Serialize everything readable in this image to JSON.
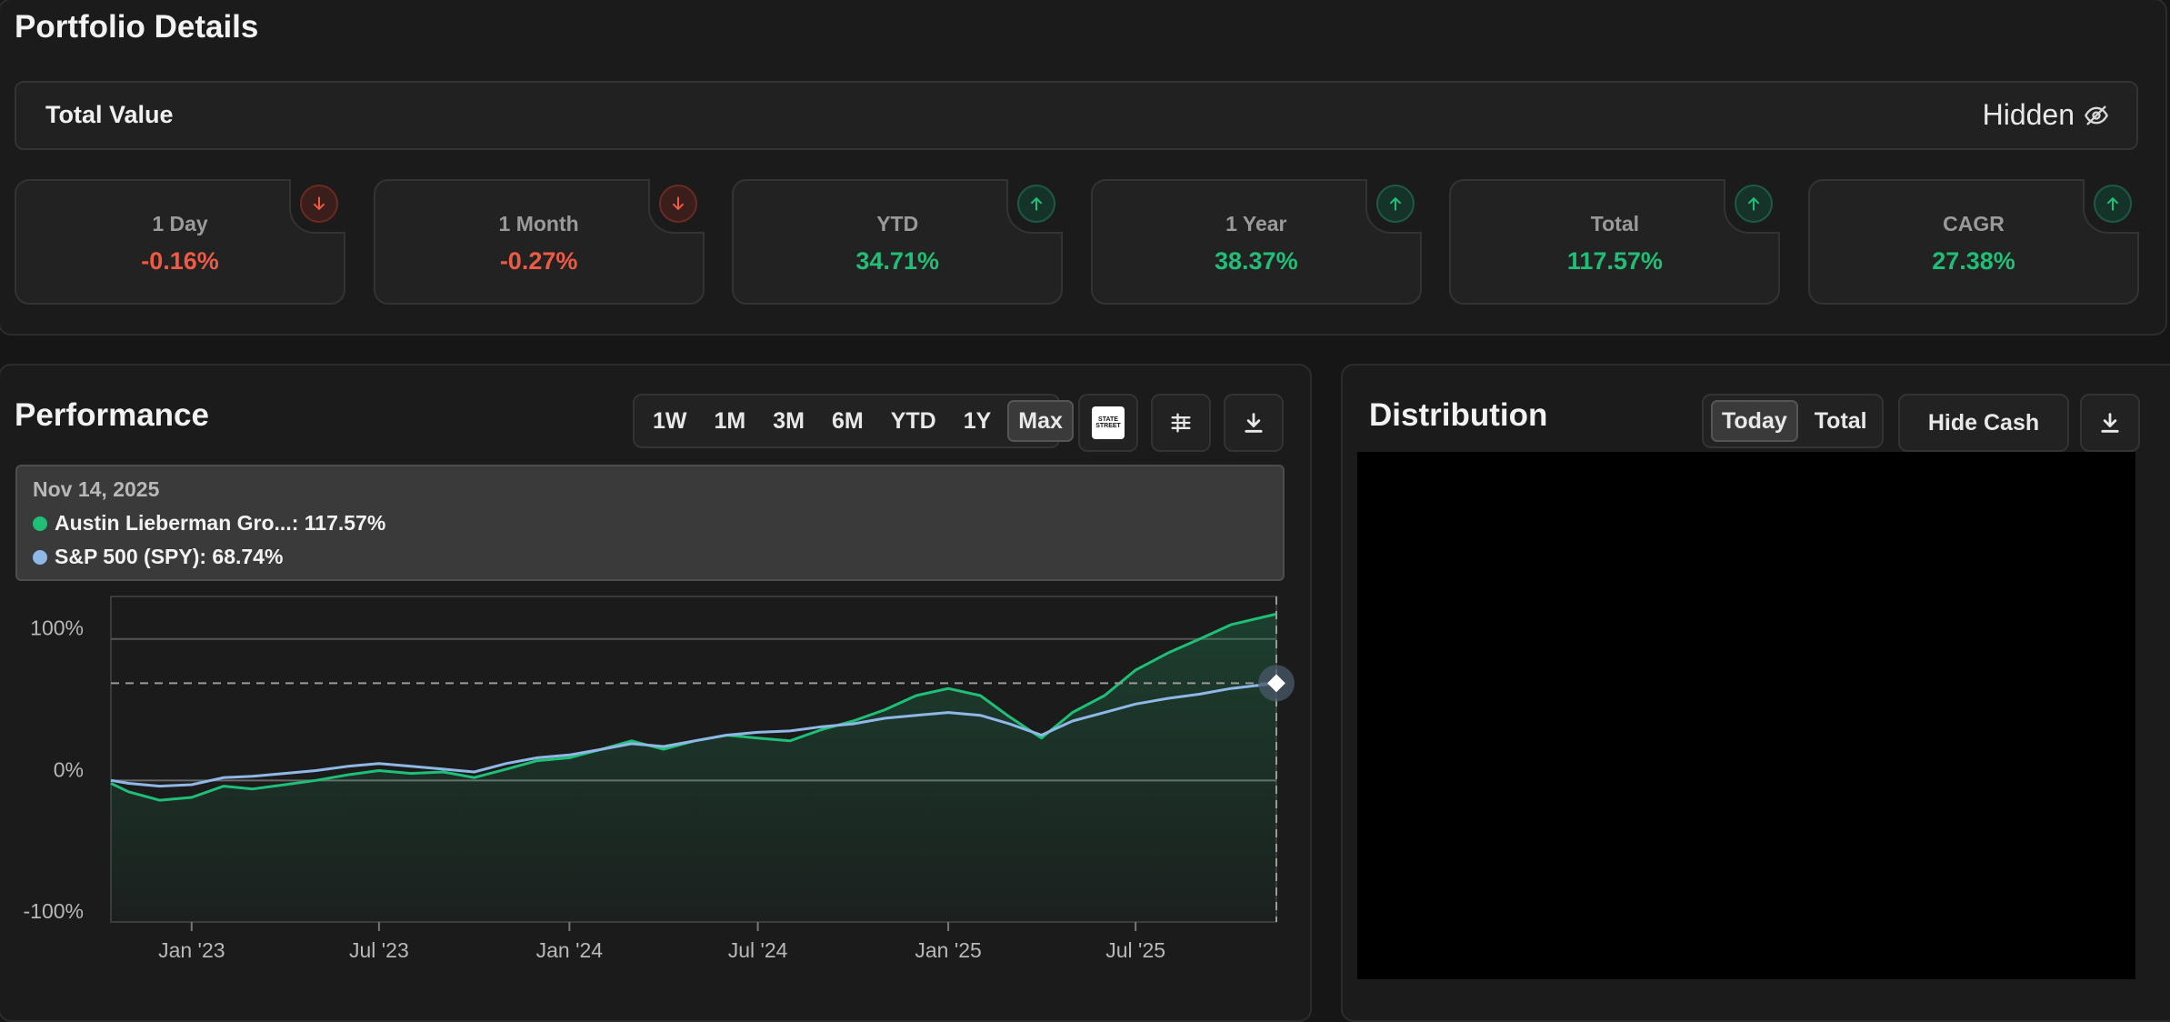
{
  "page_title": "Portfolio Details",
  "total_value": {
    "label": "Total Value",
    "status": "Hidden",
    "icon": "eye-off-icon"
  },
  "stats": [
    {
      "label": "1 Day",
      "value": "-0.16%",
      "trend": "down",
      "color": "#ef5a44"
    },
    {
      "label": "1 Month",
      "value": "-0.27%",
      "trend": "down",
      "color": "#ef5a44"
    },
    {
      "label": "YTD",
      "value": "34.71%",
      "trend": "up",
      "color": "#1fbf77"
    },
    {
      "label": "1 Year",
      "value": "38.37%",
      "trend": "up",
      "color": "#1fbf77"
    },
    {
      "label": "Total",
      "value": "117.57%",
      "trend": "up",
      "color": "#1fbf77"
    },
    {
      "label": "CAGR",
      "value": "27.38%",
      "trend": "up",
      "color": "#1fbf77"
    }
  ],
  "performance": {
    "title": "Performance",
    "ranges": [
      "1W",
      "1M",
      "3M",
      "6M",
      "YTD",
      "1Y",
      "Max"
    ],
    "active_range": "Max",
    "benchmark_logo": [
      "STATE",
      "STREET"
    ],
    "tooltip": {
      "date": "Nov 14, 2025",
      "rows": [
        {
          "label": "Austin Lieberman Gro...: 117.57%",
          "color": "#1fbf77"
        },
        {
          "label": "S&P 500 (SPY): 68.74%",
          "color": "#8fb8e6"
        }
      ]
    }
  },
  "chart_data": {
    "type": "line",
    "y_ticks": [
      "100%",
      "0%",
      "-100%"
    ],
    "x_ticks": [
      "Jan '23",
      "Jul '23",
      "Jan '24",
      "Jul '24",
      "Jan '25",
      "Jul '25"
    ],
    "ylim": [
      -100,
      130
    ],
    "grid": false,
    "series": [
      {
        "name": "Austin Lieberman Gro...",
        "color": "#1fbf77",
        "points": [
          [
            "2022-10-15",
            -2
          ],
          [
            "2022-11-01",
            -8
          ],
          [
            "2022-12-01",
            -14
          ],
          [
            "2023-01-01",
            -12
          ],
          [
            "2023-02-01",
            -4
          ],
          [
            "2023-03-01",
            -6
          ],
          [
            "2023-04-01",
            -3
          ],
          [
            "2023-05-01",
            0
          ],
          [
            "2023-06-01",
            4
          ],
          [
            "2023-07-01",
            7
          ],
          [
            "2023-08-01",
            5
          ],
          [
            "2023-09-01",
            6
          ],
          [
            "2023-10-01",
            2
          ],
          [
            "2023-11-01",
            8
          ],
          [
            "2023-12-01",
            14
          ],
          [
            "2024-01-01",
            16
          ],
          [
            "2024-02-01",
            22
          ],
          [
            "2024-03-01",
            28
          ],
          [
            "2024-04-01",
            22
          ],
          [
            "2024-05-01",
            28
          ],
          [
            "2024-06-01",
            32
          ],
          [
            "2024-07-01",
            30
          ],
          [
            "2024-08-01",
            28
          ],
          [
            "2024-09-01",
            36
          ],
          [
            "2024-10-01",
            42
          ],
          [
            "2024-11-01",
            50
          ],
          [
            "2024-12-01",
            60
          ],
          [
            "2025-01-01",
            65
          ],
          [
            "2025-02-01",
            60
          ],
          [
            "2025-03-01",
            45
          ],
          [
            "2025-04-01",
            30
          ],
          [
            "2025-05-01",
            48
          ],
          [
            "2025-06-01",
            60
          ],
          [
            "2025-07-01",
            78
          ],
          [
            "2025-08-01",
            90
          ],
          [
            "2025-09-01",
            100
          ],
          [
            "2025-10-01",
            110
          ],
          [
            "2025-11-14",
            117.57
          ]
        ]
      },
      {
        "name": "S&P 500 (SPY)",
        "color": "#8fb8e6",
        "points": [
          [
            "2022-10-15",
            0
          ],
          [
            "2022-11-01",
            -2
          ],
          [
            "2022-12-01",
            -4
          ],
          [
            "2023-01-01",
            -3
          ],
          [
            "2023-02-01",
            2
          ],
          [
            "2023-03-01",
            3
          ],
          [
            "2023-04-01",
            5
          ],
          [
            "2023-05-01",
            7
          ],
          [
            "2023-06-01",
            10
          ],
          [
            "2023-07-01",
            12
          ],
          [
            "2023-08-01",
            10
          ],
          [
            "2023-09-01",
            8
          ],
          [
            "2023-10-01",
            6
          ],
          [
            "2023-11-01",
            12
          ],
          [
            "2023-12-01",
            16
          ],
          [
            "2024-01-01",
            18
          ],
          [
            "2024-02-01",
            22
          ],
          [
            "2024-03-01",
            26
          ],
          [
            "2024-04-01",
            24
          ],
          [
            "2024-05-01",
            28
          ],
          [
            "2024-06-01",
            32
          ],
          [
            "2024-07-01",
            34
          ],
          [
            "2024-08-01",
            35
          ],
          [
            "2024-09-01",
            38
          ],
          [
            "2024-10-01",
            40
          ],
          [
            "2024-11-01",
            44
          ],
          [
            "2024-12-01",
            46
          ],
          [
            "2025-01-01",
            48
          ],
          [
            "2025-02-01",
            46
          ],
          [
            "2025-03-01",
            40
          ],
          [
            "2025-04-01",
            32
          ],
          [
            "2025-05-01",
            42
          ],
          [
            "2025-06-01",
            48
          ],
          [
            "2025-07-01",
            54
          ],
          [
            "2025-08-01",
            58
          ],
          [
            "2025-09-01",
            61
          ],
          [
            "2025-10-01",
            65
          ],
          [
            "2025-11-14",
            68.74
          ]
        ]
      }
    ]
  },
  "distribution": {
    "title": "Distribution",
    "toggle": [
      "Today",
      "Total"
    ],
    "active_toggle": "Today",
    "hide_cash_label": "Hide Cash"
  }
}
